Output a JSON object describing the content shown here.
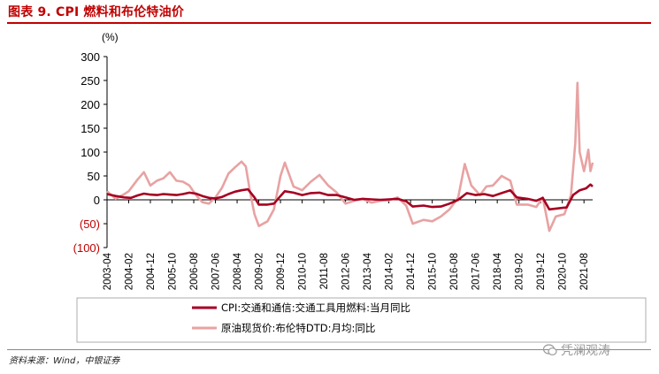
{
  "title": "图表 9. CPI 燃料和布伦特油价",
  "source": "资料来源：Wind，中银证券",
  "watermark": {
    "text": "凭澜观涛",
    "icon": "wechat-bubble-icon"
  },
  "colors": {
    "series1": "#a50021",
    "series2": "#e8a2a2",
    "neg_tick": "#c00000",
    "title": "#c00000"
  },
  "chart_data": {
    "type": "line",
    "unit_label": "(%)",
    "ylim": [
      -100,
      300
    ],
    "y_ticks": [
      {
        "value": 300,
        "label": "300"
      },
      {
        "value": 250,
        "label": "250"
      },
      {
        "value": 200,
        "label": "200"
      },
      {
        "value": 150,
        "label": "150"
      },
      {
        "value": 100,
        "label": "100"
      },
      {
        "value": 50,
        "label": "50"
      },
      {
        "value": 0,
        "label": "0"
      },
      {
        "value": -50,
        "label": "(50)"
      },
      {
        "value": -100,
        "label": "(100)"
      }
    ],
    "x_range": [
      "2003-04",
      "2021-12"
    ],
    "x_ticks": [
      "2003-04",
      "2004-02",
      "2004-12",
      "2005-10",
      "2006-08",
      "2007-06",
      "2008-04",
      "2009-02",
      "2009-12",
      "2010-10",
      "2011-08",
      "2012-06",
      "2013-04",
      "2014-02",
      "2014-12",
      "2015-10",
      "2016-08",
      "2017-06",
      "2018-04",
      "2019-02",
      "2019-12",
      "2020-10",
      "2021-08"
    ],
    "legend_position": "bottom",
    "grid": false,
    "series": [
      {
        "name": "CPI:交通和通信:交通工具用燃料:当月同比",
        "color": "#a50021",
        "points": [
          [
            "2003-04",
            12
          ],
          [
            "2003-08",
            8
          ],
          [
            "2003-12",
            5
          ],
          [
            "2004-03",
            4
          ],
          [
            "2004-06",
            9
          ],
          [
            "2004-09",
            13
          ],
          [
            "2004-12",
            11
          ],
          [
            "2005-03",
            10
          ],
          [
            "2005-06",
            12
          ],
          [
            "2005-09",
            11
          ],
          [
            "2005-12",
            10
          ],
          [
            "2006-03",
            12
          ],
          [
            "2006-06",
            15
          ],
          [
            "2006-09",
            13
          ],
          [
            "2006-12",
            8
          ],
          [
            "2007-03",
            4
          ],
          [
            "2007-06",
            3
          ],
          [
            "2007-09",
            6
          ],
          [
            "2007-12",
            12
          ],
          [
            "2008-03",
            17
          ],
          [
            "2008-06",
            20
          ],
          [
            "2008-09",
            22
          ],
          [
            "2008-12",
            5
          ],
          [
            "2009-02",
            -10
          ],
          [
            "2009-06",
            -10
          ],
          [
            "2009-09",
            -8
          ],
          [
            "2009-12",
            8
          ],
          [
            "2010-02",
            18
          ],
          [
            "2010-06",
            15
          ],
          [
            "2010-10",
            10
          ],
          [
            "2011-02",
            14
          ],
          [
            "2011-06",
            15
          ],
          [
            "2011-10",
            10
          ],
          [
            "2012-02",
            10
          ],
          [
            "2012-06",
            5
          ],
          [
            "2012-10",
            0
          ],
          [
            "2013-02",
            2
          ],
          [
            "2013-06",
            1
          ],
          [
            "2013-10",
            0
          ],
          [
            "2014-02",
            1
          ],
          [
            "2014-06",
            2
          ],
          [
            "2014-10",
            -3
          ],
          [
            "2015-01",
            -14
          ],
          [
            "2015-06",
            -12
          ],
          [
            "2015-10",
            -15
          ],
          [
            "2016-02",
            -14
          ],
          [
            "2016-06",
            -8
          ],
          [
            "2016-10",
            0
          ],
          [
            "2017-02",
            14
          ],
          [
            "2017-06",
            10
          ],
          [
            "2017-10",
            12
          ],
          [
            "2018-02",
            8
          ],
          [
            "2018-06",
            14
          ],
          [
            "2018-10",
            20
          ],
          [
            "2019-01",
            5
          ],
          [
            "2019-06",
            2
          ],
          [
            "2019-10",
            -2
          ],
          [
            "2020-01",
            4
          ],
          [
            "2020-04",
            -20
          ],
          [
            "2020-08",
            -18
          ],
          [
            "2020-12",
            -16
          ],
          [
            "2021-03",
            10
          ],
          [
            "2021-06",
            20
          ],
          [
            "2021-09",
            24
          ],
          [
            "2021-11",
            32
          ],
          [
            "2021-12",
            28
          ]
        ]
      },
      {
        "name": "原油现货价:布伦特DTD:月均:同比",
        "color": "#e8a2a2",
        "points": [
          [
            "2003-04",
            18
          ],
          [
            "2003-08",
            2
          ],
          [
            "2003-12",
            12
          ],
          [
            "2004-02",
            18
          ],
          [
            "2004-06",
            42
          ],
          [
            "2004-09",
            58
          ],
          [
            "2004-12",
            30
          ],
          [
            "2005-03",
            40
          ],
          [
            "2005-06",
            45
          ],
          [
            "2005-09",
            58
          ],
          [
            "2005-12",
            40
          ],
          [
            "2006-03",
            38
          ],
          [
            "2006-06",
            30
          ],
          [
            "2006-09",
            10
          ],
          [
            "2006-12",
            -5
          ],
          [
            "2007-03",
            -8
          ],
          [
            "2007-06",
            5
          ],
          [
            "2007-09",
            25
          ],
          [
            "2007-12",
            55
          ],
          [
            "2008-03",
            68
          ],
          [
            "2008-06",
            80
          ],
          [
            "2008-08",
            70
          ],
          [
            "2008-10",
            15
          ],
          [
            "2008-12",
            -30
          ],
          [
            "2009-02",
            -55
          ],
          [
            "2009-06",
            -45
          ],
          [
            "2009-09",
            -20
          ],
          [
            "2009-12",
            50
          ],
          [
            "2010-02",
            78
          ],
          [
            "2010-06",
            28
          ],
          [
            "2010-10",
            20
          ],
          [
            "2011-02",
            38
          ],
          [
            "2011-06",
            52
          ],
          [
            "2011-10",
            30
          ],
          [
            "2012-02",
            15
          ],
          [
            "2012-06",
            -8
          ],
          [
            "2012-10",
            -2
          ],
          [
            "2013-02",
            2
          ],
          [
            "2013-06",
            -6
          ],
          [
            "2013-10",
            -2
          ],
          [
            "2014-02",
            -1
          ],
          [
            "2014-06",
            5
          ],
          [
            "2014-10",
            -12
          ],
          [
            "2015-01",
            -50
          ],
          [
            "2015-06",
            -42
          ],
          [
            "2015-10",
            -45
          ],
          [
            "2016-02",
            -35
          ],
          [
            "2016-06",
            -20
          ],
          [
            "2016-10",
            5
          ],
          [
            "2017-01",
            75
          ],
          [
            "2017-04",
            30
          ],
          [
            "2017-08",
            10
          ],
          [
            "2017-11",
            28
          ],
          [
            "2018-02",
            30
          ],
          [
            "2018-06",
            50
          ],
          [
            "2018-10",
            40
          ],
          [
            "2019-01",
            -10
          ],
          [
            "2019-06",
            -10
          ],
          [
            "2019-10",
            -15
          ],
          [
            "2020-01",
            5
          ],
          [
            "2020-04",
            -65
          ],
          [
            "2020-07",
            -35
          ],
          [
            "2020-11",
            -30
          ],
          [
            "2021-02",
            10
          ],
          [
            "2021-04",
            120
          ],
          [
            "2021-05",
            245
          ],
          [
            "2021-06",
            100
          ],
          [
            "2021-08",
            60
          ],
          [
            "2021-09",
            80
          ],
          [
            "2021-10",
            105
          ],
          [
            "2021-11",
            60
          ],
          [
            "2021-12",
            78
          ]
        ]
      }
    ]
  }
}
